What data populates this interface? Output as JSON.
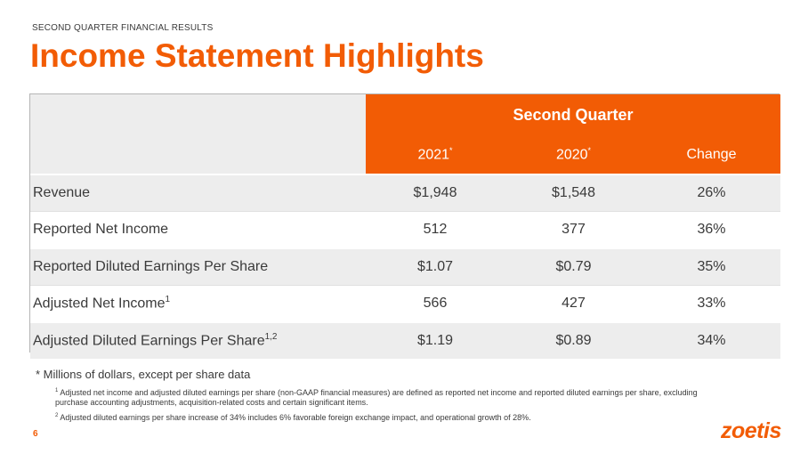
{
  "header": {
    "kicker": "SECOND QUARTER FINANCIAL RESULTS",
    "title": "Income Statement Highlights"
  },
  "table": {
    "group_header": "Second Quarter",
    "columns": [
      {
        "label": "2021",
        "mark": "*"
      },
      {
        "label": "2020",
        "mark": "*"
      },
      {
        "label": "Change",
        "mark": ""
      }
    ],
    "rows": [
      {
        "label": "Revenue",
        "sup": "",
        "v2021": "$1,948",
        "v2020": "$1,548",
        "change": "26%"
      },
      {
        "label": "Reported Net Income",
        "sup": "",
        "v2021": "512",
        "v2020": "377",
        "change": "36%"
      },
      {
        "label": "Reported Diluted Earnings Per Share",
        "sup": "",
        "v2021": "$1.07",
        "v2020": "$0.79",
        "change": "35%"
      },
      {
        "label": "Adjusted Net Income",
        "sup": "1",
        "v2021": "566",
        "v2020": "427",
        "change": "33%"
      },
      {
        "label": "Adjusted Diluted Earnings Per Share",
        "sup": "1,2",
        "v2021": "$1.19",
        "v2020": "$0.89",
        "change": "34%"
      }
    ]
  },
  "notes": {
    "main": "* Millions of dollars, except per share data",
    "footnote1_mark": "1",
    "footnote1": "Adjusted net income and adjusted diluted earnings per share (non-GAAP financial measures) are defined as reported net income and reported diluted earnings per share, excluding purchase accounting adjustments, acquisition-related costs and certain significant items.",
    "footnote2_mark": "2",
    "footnote2": "Adjusted diluted earnings per share increase of 34% includes 6% favorable foreign exchange impact, and operational growth of 28%."
  },
  "footer": {
    "page_number": "6",
    "logo": "zoetis"
  },
  "colors": {
    "accent": "#f25c05",
    "row_shade": "#ededed"
  }
}
